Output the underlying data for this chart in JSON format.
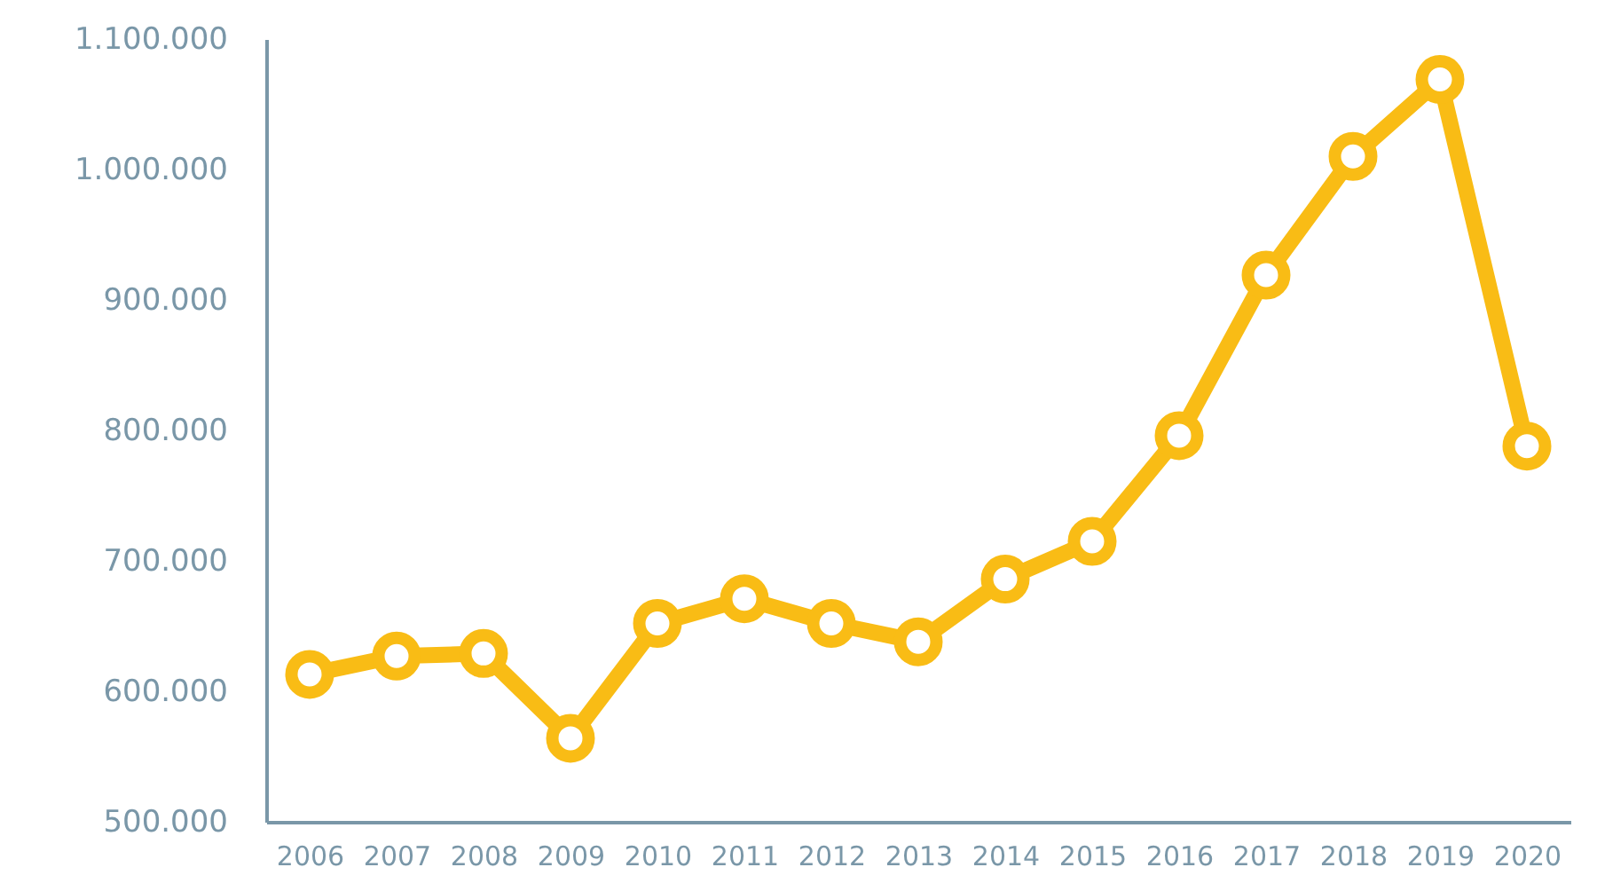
{
  "chart_data": {
    "type": "line",
    "categories": [
      "2006",
      "2007",
      "2008",
      "2009",
      "2010",
      "2011",
      "2012",
      "2013",
      "2014",
      "2015",
      "2016",
      "2017",
      "2018",
      "2019",
      "2020"
    ],
    "series": [
      {
        "color": "#f9bc15",
        "values": [
          613000,
          627000,
          629000,
          564000,
          652000,
          671000,
          652000,
          638000,
          686000,
          715000,
          796000,
          919000,
          1010000,
          1069000,
          788000
        ]
      }
    ],
    "ylim": [
      500000,
      1100000
    ],
    "yticks": [
      {
        "value": 500000,
        "label": "500.000"
      },
      {
        "value": 600000,
        "label": "600.000"
      },
      {
        "value": 700000,
        "label": "700.000"
      },
      {
        "value": 800000,
        "label": "800.000"
      },
      {
        "value": 900000,
        "label": "900.000"
      },
      {
        "value": 1000000,
        "label": "1.000.000"
      },
      {
        "value": 1100000,
        "label": "1.100.000"
      }
    ],
    "grid": false,
    "marker": "circle",
    "line_style": "solid"
  }
}
